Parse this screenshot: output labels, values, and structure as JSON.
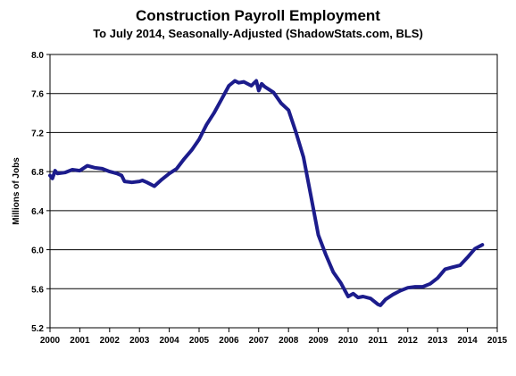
{
  "chart_data": {
    "type": "line",
    "title": "Construction Payroll Employment",
    "subtitle": "To July 2014, Seasonally-Adjusted (ShadowStats.com, BLS)",
    "xlabel": "",
    "ylabel": "Millions  of Jobs",
    "xlim": [
      2000,
      2015
    ],
    "ylim": [
      5.2,
      8.0
    ],
    "x_ticks": [
      2000,
      2001,
      2002,
      2003,
      2004,
      2005,
      2006,
      2007,
      2008,
      2009,
      2010,
      2011,
      2012,
      2013,
      2014,
      2015
    ],
    "y_ticks": [
      5.2,
      5.6,
      6.0,
      6.4,
      6.8,
      7.2,
      7.6,
      8.0
    ],
    "y_tick_labels": [
      "5.2",
      "5.6",
      "6.0",
      "6.4",
      "6.8",
      "7.2",
      "7.6",
      "8.0"
    ],
    "grid": "horizontal",
    "series_color": "#1c1c8c",
    "series": [
      {
        "x": [
          2000.0,
          2000.08,
          2000.17,
          2000.25,
          2000.5,
          2000.75,
          2001.0,
          2001.1,
          2001.25,
          2001.5,
          2001.75,
          2002.0,
          2002.25,
          2002.4,
          2002.5,
          2002.75,
          2003.0,
          2003.1,
          2003.25,
          2003.5,
          2003.75,
          2004.0,
          2004.25,
          2004.5,
          2004.75,
          2005.0,
          2005.25,
          2005.5,
          2005.75,
          2006.0,
          2006.2,
          2006.33,
          2006.5,
          2006.75,
          2006.92,
          2007.0,
          2007.1,
          2007.2,
          2007.5,
          2007.75,
          2008.0,
          2008.25,
          2008.5,
          2008.75,
          2009.0,
          2009.25,
          2009.5,
          2009.75,
          2010.0,
          2010.17,
          2010.33,
          2010.5,
          2010.75,
          2011.0,
          2011.08,
          2011.25,
          2011.5,
          2011.75,
          2012.0,
          2012.25,
          2012.5,
          2012.75,
          2013.0,
          2013.25,
          2013.5,
          2013.75,
          2014.0,
          2014.25,
          2014.5
        ],
        "values": [
          6.76,
          6.73,
          6.81,
          6.78,
          6.79,
          6.82,
          6.81,
          6.83,
          6.86,
          6.84,
          6.83,
          6.8,
          6.78,
          6.76,
          6.7,
          6.69,
          6.7,
          6.71,
          6.69,
          6.65,
          6.72,
          6.78,
          6.83,
          6.93,
          7.02,
          7.13,
          7.28,
          7.4,
          7.54,
          7.68,
          7.73,
          7.71,
          7.72,
          7.68,
          7.73,
          7.63,
          7.7,
          7.67,
          7.61,
          7.5,
          7.43,
          7.2,
          6.95,
          6.55,
          6.15,
          5.95,
          5.77,
          5.66,
          5.52,
          5.55,
          5.51,
          5.52,
          5.5,
          5.44,
          5.43,
          5.49,
          5.54,
          5.58,
          5.61,
          5.62,
          5.62,
          5.65,
          5.71,
          5.8,
          5.82,
          5.84,
          5.92,
          6.01,
          6.05
        ]
      }
    ]
  }
}
